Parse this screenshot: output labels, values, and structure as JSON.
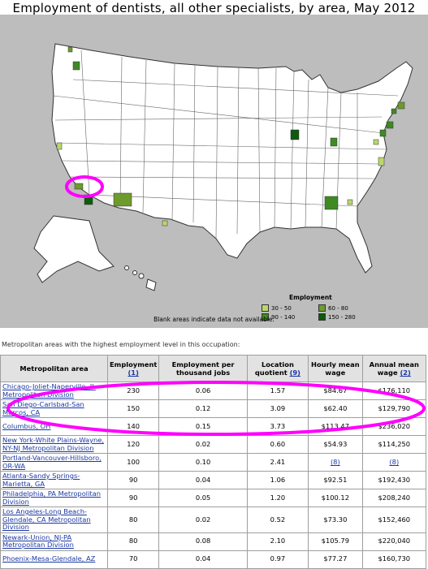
{
  "title": "Employment of dentists, all other specialists, by area, May 2012",
  "legend": {
    "title": "Employment",
    "items": [
      {
        "label": "30 - 50",
        "color": "#b9d86a"
      },
      {
        "label": "60 - 80",
        "color": "#6d9b2c"
      },
      {
        "label": "90 - 140",
        "color": "#3f8a22"
      },
      {
        "label": "150 - 280",
        "color": "#0e5a10"
      }
    ]
  },
  "blank_note": "Blank areas indicate data not available.",
  "intro": "Metropolitan areas with the highest employment level in this occupation:",
  "table": {
    "headers": {
      "area": "Metropolitan area",
      "employment": "Employment",
      "employment_note": "(1)",
      "per_thousand": "Employment per thousand jobs",
      "location": "Location quotient",
      "location_note": "(9)",
      "hourly": "Hourly mean wage",
      "annual": "Annual mean wage",
      "annual_note": "(2)"
    },
    "rows": [
      {
        "area": "Chicago-Joliet-Naperville, IL Metropolitan Division",
        "employment": "230",
        "per_thousand": "0.06",
        "location": "1.57",
        "hourly": "$84.67",
        "annual": "$176,110"
      },
      {
        "area": "San Diego-Carlsbad-San Marcos, CA",
        "employment": "150",
        "per_thousand": "0.12",
        "location": "3.09",
        "hourly": "$62.40",
        "annual": "$129,790"
      },
      {
        "area": "Columbus, OH",
        "employment": "140",
        "per_thousand": "0.15",
        "location": "3.73",
        "hourly": "$113.47",
        "annual": "$236,020"
      },
      {
        "area": "New York-White Plains-Wayne, NY-NJ Metropolitan Division",
        "employment": "120",
        "per_thousand": "0.02",
        "location": "0.60",
        "hourly": "$54.93",
        "annual": "$114,250"
      },
      {
        "area": "Portland-Vancouver-Hillsboro, OR-WA",
        "employment": "100",
        "per_thousand": "0.10",
        "location": "2.41",
        "hourly": "(8)",
        "annual": "(8)"
      },
      {
        "area": "Atlanta-Sandy Springs-Marietta, GA",
        "employment": "90",
        "per_thousand": "0.04",
        "location": "1.06",
        "hourly": "$92.51",
        "annual": "$192,430"
      },
      {
        "area": "Philadelphia, PA Metropolitan Division",
        "employment": "90",
        "per_thousand": "0.05",
        "location": "1.20",
        "hourly": "$100.12",
        "annual": "$208,240"
      },
      {
        "area": "Los Angeles-Long Beach-Glendale, CA Metropolitan Division",
        "employment": "80",
        "per_thousand": "0.02",
        "location": "0.52",
        "hourly": "$73.30",
        "annual": "$152,460"
      },
      {
        "area": "Newark-Union, NJ-PA Metropolitan Division",
        "employment": "80",
        "per_thousand": "0.08",
        "location": "2.10",
        "hourly": "$105.79",
        "annual": "$220,040"
      },
      {
        "area": "Phoenix-Mesa-Glendale, AZ",
        "employment": "70",
        "per_thousand": "0.04",
        "location": "0.97",
        "hourly": "$77.27",
        "annual": "$160,730"
      }
    ]
  },
  "annotation_color": "#ff00ff"
}
